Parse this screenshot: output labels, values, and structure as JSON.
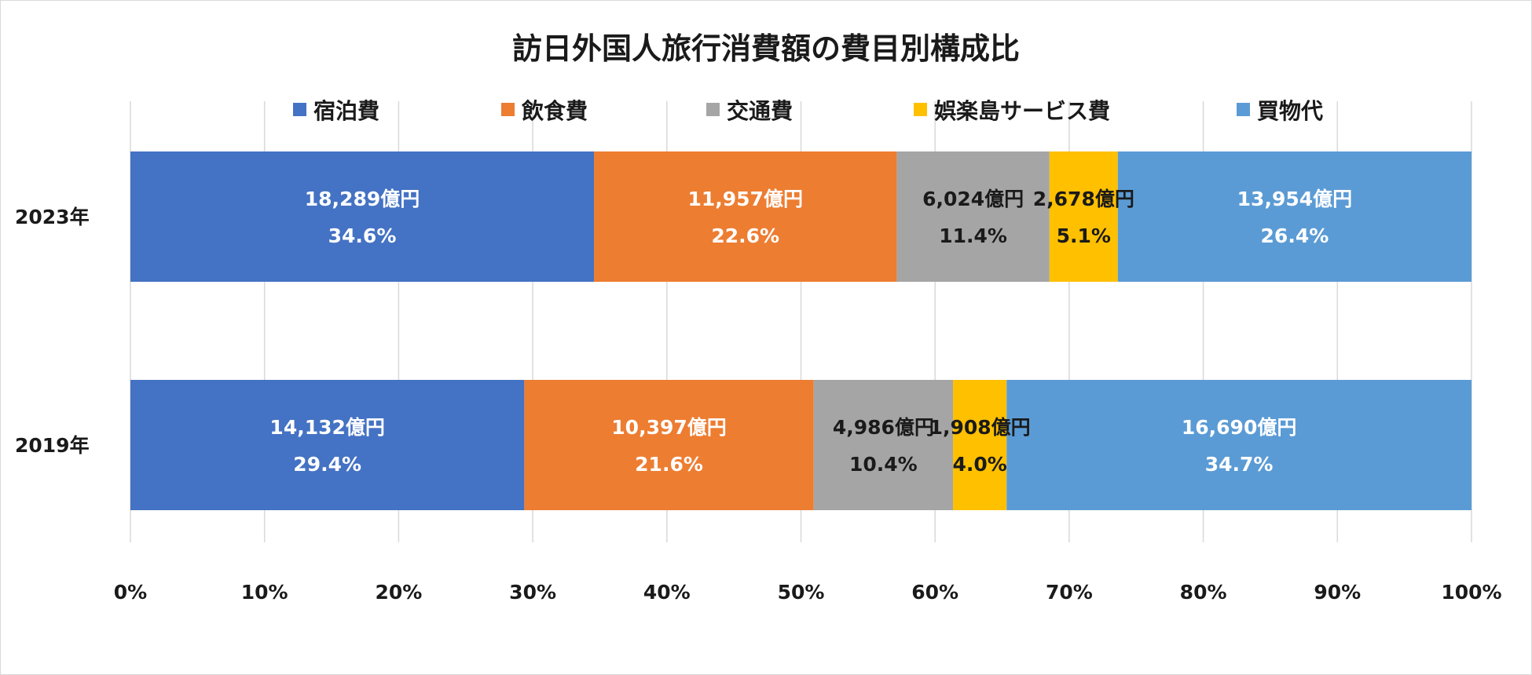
{
  "chart_data": {
    "type": "bar",
    "orientation": "horizontal",
    "stacked": "percent",
    "title": "訪日外国人旅行消費額の費目別構成比",
    "xlabel": "",
    "ylabel": "",
    "xlim": [
      0,
      100
    ],
    "x_ticks": [
      "0%",
      "10%",
      "20%",
      "30%",
      "40%",
      "50%",
      "60%",
      "70%",
      "80%",
      "90%",
      "100%"
    ],
    "grid": true,
    "legend_position": "top",
    "categories": [
      "2023年",
      "2019年"
    ],
    "series": [
      {
        "name": "宿泊費",
        "color": "#4472C4",
        "label_color": "#ffffff",
        "values": [
          34.6,
          29.4
        ],
        "amounts": [
          "18,289億円",
          "14,132億円"
        ],
        "percent_labels": [
          "34.6%",
          "29.4%"
        ]
      },
      {
        "name": "飲食費",
        "color": "#ED7D31",
        "label_color": "#ffffff",
        "values": [
          22.6,
          21.6
        ],
        "amounts": [
          "11,957億円",
          "10,397億円"
        ],
        "percent_labels": [
          "22.6%",
          "21.6%"
        ]
      },
      {
        "name": "交通費",
        "color": "#A5A5A5",
        "label_color": "#1a1a1a",
        "values": [
          11.4,
          10.4
        ],
        "amounts": [
          "6,024億円",
          "4,986億円"
        ],
        "percent_labels": [
          "11.4%",
          "10.4%"
        ]
      },
      {
        "name": "娯楽島サービス費",
        "color": "#FFC000",
        "label_color": "#1a1a1a",
        "values": [
          5.1,
          4.0
        ],
        "amounts": [
          "2,678億円",
          "1,908億円"
        ],
        "percent_labels": [
          "5.1%",
          "4.0%"
        ]
      },
      {
        "name": "買物代",
        "color": "#5B9BD5",
        "label_color": "#ffffff",
        "values": [
          26.4,
          34.7
        ],
        "amounts": [
          "13,954億円",
          "16,690億円"
        ],
        "percent_labels": [
          "26.4%",
          "34.7%"
        ]
      }
    ]
  }
}
